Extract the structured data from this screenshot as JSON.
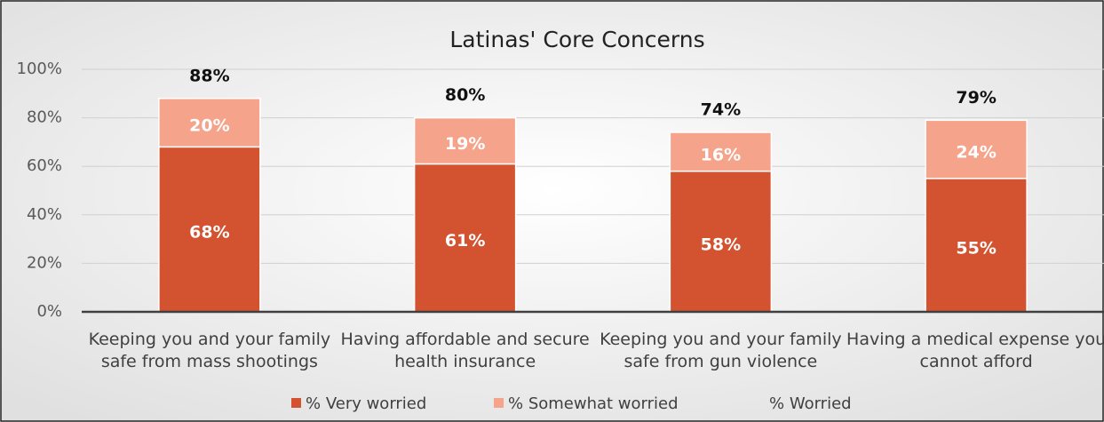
{
  "chart_data": {
    "type": "stacked_bar",
    "title": "Latinas' Core Concerns",
    "categories": [
      "Keeping you and your family safe from mass shootings",
      "Having affordable and secure health insurance",
      "Keeping you and your family safe from gun violence",
      "Having a medical expense you cannot afford"
    ],
    "series": [
      {
        "name": "% Very worried",
        "color": "#d35230",
        "values": [
          68,
          61,
          58,
          55
        ],
        "value_labels": [
          "68%",
          "61%",
          "58%",
          "55%"
        ],
        "stack": true
      },
      {
        "name": "% Somewhat worried",
        "color": "#f5a38b",
        "values": [
          20,
          19,
          16,
          24
        ],
        "value_labels": [
          "20%",
          "19%",
          "16%",
          "24%"
        ],
        "stack": true
      },
      {
        "name": "% Worried",
        "color": "none",
        "values": [
          88,
          80,
          74,
          79
        ],
        "value_labels": [
          "88%",
          "80%",
          "74%",
          "79%"
        ],
        "stack": false
      }
    ],
    "ylim": [
      0,
      100
    ],
    "yticks": [
      {
        "value": 0,
        "label": "0%"
      },
      {
        "value": 20,
        "label": "20%"
      },
      {
        "value": 40,
        "label": "40%"
      },
      {
        "value": 60,
        "label": "60%"
      },
      {
        "value": 80,
        "label": "80%"
      },
      {
        "value": 100,
        "label": "100%"
      }
    ],
    "grid": true,
    "legend": "bottom"
  }
}
